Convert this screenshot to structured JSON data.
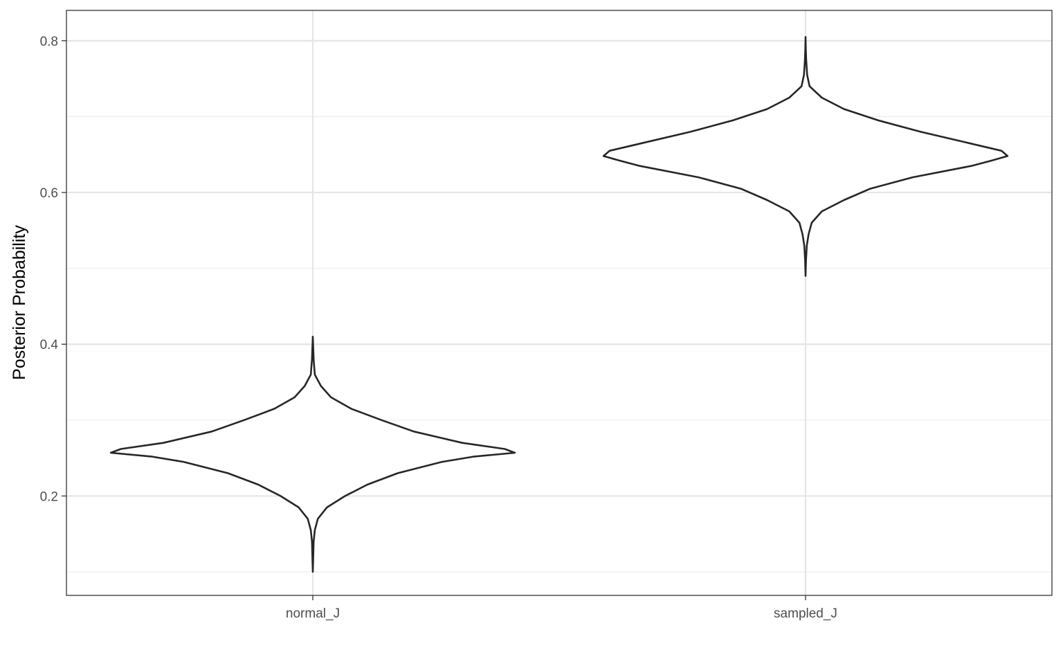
{
  "chart_data": {
    "type": "violin",
    "title": "",
    "xlabel": "",
    "ylabel": "Posterior Probability",
    "ylim": [
      0.069,
      0.84
    ],
    "yticks": [
      0.2,
      0.4,
      0.6,
      0.8
    ],
    "yticks_minor": [
      0.1,
      0.3,
      0.5,
      0.7
    ],
    "tick_labels_y": [
      "0.2",
      "0.4",
      "0.6",
      "0.8"
    ],
    "grid": true,
    "legend": "none",
    "categories": [
      "normal_J",
      "sampled_J"
    ],
    "series": [
      {
        "category": "normal_J",
        "min": 0.1,
        "max": 0.41,
        "profile": [
          [
            0.1,
            0.0
          ],
          [
            0.12,
            0.002
          ],
          [
            0.14,
            0.004
          ],
          [
            0.155,
            0.01
          ],
          [
            0.17,
            0.025
          ],
          [
            0.185,
            0.07
          ],
          [
            0.2,
            0.16
          ],
          [
            0.215,
            0.27
          ],
          [
            0.23,
            0.42
          ],
          [
            0.245,
            0.64
          ],
          [
            0.252,
            0.8
          ],
          [
            0.257,
            1.0
          ],
          [
            0.262,
            0.95
          ],
          [
            0.27,
            0.74
          ],
          [
            0.285,
            0.5
          ],
          [
            0.3,
            0.34
          ],
          [
            0.315,
            0.19
          ],
          [
            0.33,
            0.09
          ],
          [
            0.345,
            0.04
          ],
          [
            0.36,
            0.01
          ],
          [
            0.38,
            0.004
          ],
          [
            0.395,
            0.002
          ],
          [
            0.41,
            0.0
          ]
        ]
      },
      {
        "category": "sampled_J",
        "min": 0.49,
        "max": 0.805,
        "profile": [
          [
            0.49,
            0.0
          ],
          [
            0.51,
            0.002
          ],
          [
            0.53,
            0.006
          ],
          [
            0.545,
            0.015
          ],
          [
            0.56,
            0.03
          ],
          [
            0.575,
            0.08
          ],
          [
            0.59,
            0.19
          ],
          [
            0.605,
            0.32
          ],
          [
            0.62,
            0.53
          ],
          [
            0.635,
            0.82
          ],
          [
            0.642,
            0.92
          ],
          [
            0.648,
            1.0
          ],
          [
            0.655,
            0.97
          ],
          [
            0.665,
            0.81
          ],
          [
            0.68,
            0.57
          ],
          [
            0.695,
            0.36
          ],
          [
            0.71,
            0.19
          ],
          [
            0.725,
            0.08
          ],
          [
            0.74,
            0.02
          ],
          [
            0.755,
            0.008
          ],
          [
            0.775,
            0.003
          ],
          [
            0.79,
            0.001
          ],
          [
            0.805,
            0.0
          ]
        ]
      }
    ]
  }
}
